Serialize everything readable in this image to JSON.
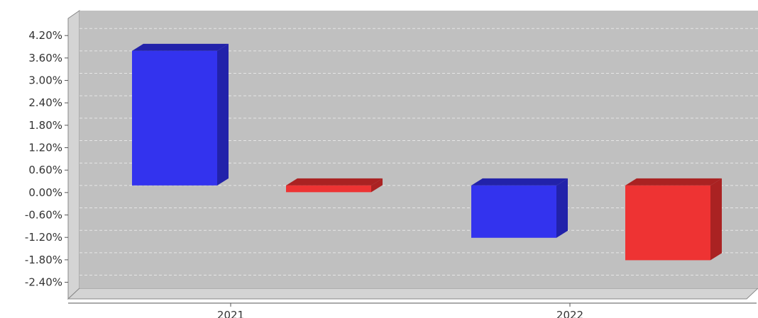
{
  "chart_data": {
    "type": "bar",
    "categories": [
      "2021",
      "2022"
    ],
    "series": [
      {
        "color": "#3333ee",
        "side_color": "#2222aa",
        "values": [
          3.6,
          -1.4
        ]
      },
      {
        "color": "#ee3333",
        "side_color": "#aa2222",
        "values": [
          -0.18,
          -2.0
        ]
      }
    ],
    "y_ticks": [
      "4.20%",
      "3.60%",
      "3.00%",
      "2.40%",
      "1.80%",
      "1.20%",
      "0.60%",
      "0.00%",
      "-0.60%",
      "-1.20%",
      "-1.80%",
      "-2.40%"
    ],
    "y_tick_values": [
      4.2,
      3.6,
      3.0,
      2.4,
      1.8,
      1.2,
      0.6,
      0.0,
      -0.6,
      -1.2,
      -1.8,
      -2.4
    ],
    "ylim": [
      -2.75,
      4.45
    ],
    "grid": true,
    "three_d": true,
    "colors": {
      "plot_background": "#c0c0c0",
      "wall": "#d4d4d4",
      "grid": "#e6e6e6"
    }
  }
}
